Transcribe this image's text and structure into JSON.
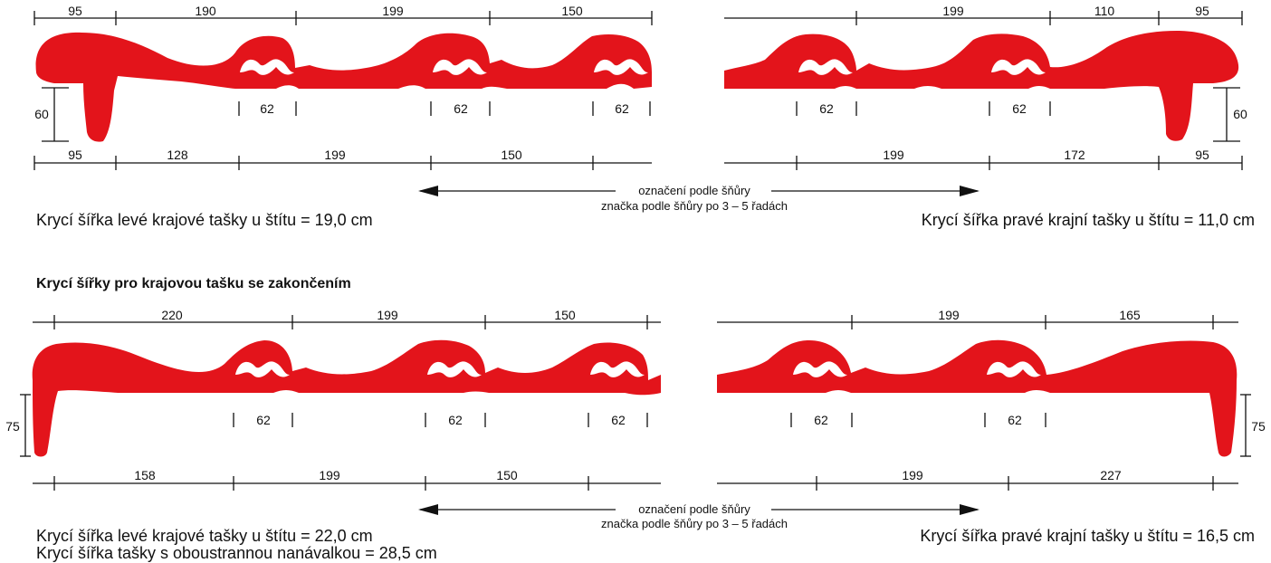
{
  "top": {
    "left": {
      "top_dims": [
        "95",
        "190",
        "199",
        "150"
      ],
      "bottom_dims": [
        "95",
        "128",
        "199",
        "150"
      ],
      "lock_dims": [
        "62",
        "62",
        "62"
      ],
      "height_dim": "60"
    },
    "right": {
      "top_dims": [
        "199",
        "110",
        "95"
      ],
      "bottom_dims": [
        "199",
        "172",
        "95"
      ],
      "lock_dims": [
        "62",
        "62"
      ],
      "height_dim": "60"
    },
    "arrow_label_1": "označení podle šňůry",
    "arrow_label_2": "značka podle šňůry po 3 – 5 řadách",
    "caption_left": "Krycí šířka levé krajové tašky u štítu = 19,0 cm",
    "caption_right": "Krycí šířka pravé krajní tašky u štítu = 11,0 cm"
  },
  "section_title": "Krycí šířky pro krajovou tašku se zakončením",
  "bottom": {
    "left": {
      "top_dims": [
        "220",
        "199",
        "150"
      ],
      "bottom_dims": [
        "158",
        "199",
        "150"
      ],
      "lock_dims": [
        "62",
        "62",
        "62"
      ],
      "height_dim": "75"
    },
    "right": {
      "top_dims": [
        "199",
        "165"
      ],
      "bottom_dims": [
        "199",
        "227"
      ],
      "lock_dims": [
        "62",
        "62"
      ],
      "height_dim": "75"
    },
    "arrow_label_1": "označení podle šňůry",
    "arrow_label_2": "značka podle šňůry po 3 – 5 řadách",
    "caption_left_1": "Krycí šířka levé krajové tašky u štítu = 22,0 cm",
    "caption_left_2": "Krycí šířka tašky s oboustrannou nanávalkou = 28,5 cm",
    "caption_right": "Krycí šířka pravé krajní tašky u štítu = 16,5 cm"
  },
  "colors": {
    "tile": "#e3141b",
    "line": "#111111"
  }
}
